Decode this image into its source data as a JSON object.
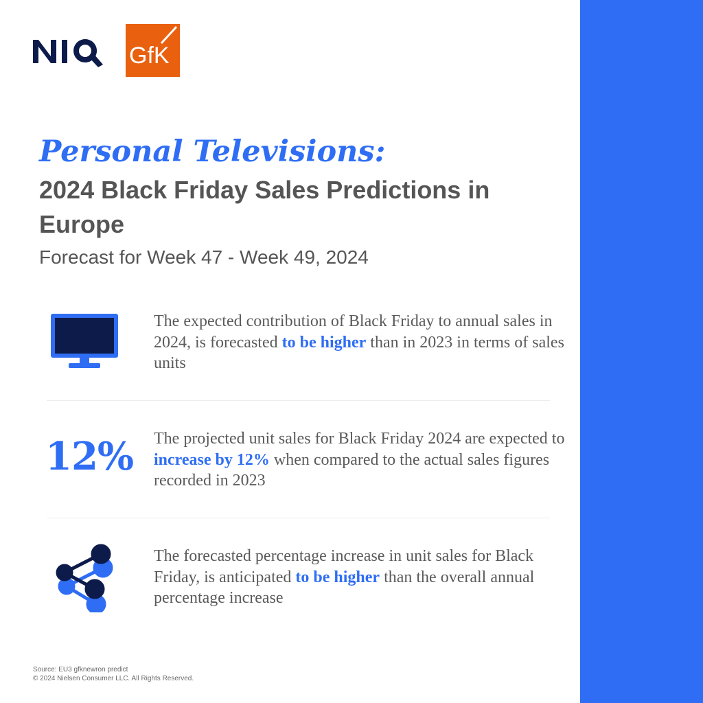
{
  "brand": {
    "niq_logo_text": "NIQ",
    "gfk_logo_text": "GfK",
    "accent_color": "#2f6ef4",
    "gfk_color": "#e9600f",
    "navy_color": "#0d1b4a"
  },
  "header": {
    "headline": "Personal Televisions:",
    "subhead": "2024 Black Friday Sales Predictions in Europe",
    "forecast": "Forecast for Week 47 - Week 49, 2024"
  },
  "stats": [
    {
      "icon": "monitor-icon",
      "before": "The expected contribution of Black Friday to annual sales in 2024, is forecasted ",
      "highlight": "to be higher",
      "after": " than in 2023  in terms of sales units"
    },
    {
      "figure": "12%",
      "before": "The projected unit sales for Black Friday 2024 are expected to ",
      "highlight": "increase by 12%",
      "after": " when compared to the actual sales figures recorded in 2023"
    },
    {
      "icon": "share-network-icon",
      "before": "The forecasted percentage increase in unit sales for Black Friday, is anticipated ",
      "highlight": "to be higher",
      "after": " than the overall annual percentage increase"
    }
  ],
  "footer": {
    "source": "Source: EU3 gfknewron predict",
    "copyright": "© 2024 Nielsen Consumer LLC. All Rights Reserved."
  }
}
